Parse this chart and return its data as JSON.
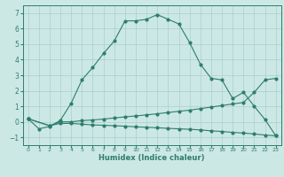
{
  "xlabel": "Humidex (Indice chaleur)",
  "bg_color": "#cce8e5",
  "grid_color": "#aacfcc",
  "line_color": "#2e7d6e",
  "xlim": [
    -0.5,
    23.5
  ],
  "ylim": [
    -1.5,
    7.5
  ],
  "xticks": [
    0,
    1,
    2,
    3,
    4,
    5,
    6,
    7,
    8,
    9,
    10,
    11,
    12,
    13,
    14,
    15,
    16,
    17,
    18,
    19,
    20,
    21,
    22,
    23
  ],
  "yticks": [
    -1,
    0,
    1,
    2,
    3,
    4,
    5,
    6,
    7
  ],
  "line1_x": [
    0,
    1,
    2,
    3,
    4,
    5,
    6,
    7,
    8,
    9,
    10,
    11,
    12,
    13,
    14,
    15,
    16,
    17,
    18,
    19,
    20,
    21,
    22,
    23
  ],
  "line1_y": [
    0.2,
    -0.45,
    -0.3,
    0.1,
    1.2,
    2.7,
    3.5,
    4.4,
    5.2,
    6.5,
    6.5,
    6.6,
    6.9,
    6.6,
    6.3,
    5.1,
    3.7,
    2.8,
    2.7,
    1.5,
    1.9,
    1.0,
    0.15,
    -0.9
  ],
  "line2_x": [
    0,
    2,
    3,
    4,
    5,
    6,
    7,
    8,
    9,
    10,
    11,
    12,
    13,
    14,
    15,
    16,
    17,
    18,
    19,
    20,
    21,
    22,
    23
  ],
  "line2_y": [
    0.2,
    -0.25,
    0.0,
    0.0,
    0.08,
    0.12,
    0.18,
    0.25,
    0.32,
    0.38,
    0.45,
    0.52,
    0.6,
    0.68,
    0.75,
    0.85,
    0.95,
    1.05,
    1.15,
    1.25,
    1.9,
    2.7,
    2.8
  ],
  "line3_x": [
    0,
    2,
    3,
    4,
    5,
    6,
    7,
    8,
    9,
    10,
    11,
    12,
    13,
    14,
    15,
    16,
    17,
    18,
    19,
    20,
    21,
    22,
    23
  ],
  "line3_y": [
    0.2,
    -0.25,
    -0.1,
    -0.1,
    -0.15,
    -0.2,
    -0.22,
    -0.25,
    -0.28,
    -0.32,
    -0.35,
    -0.38,
    -0.42,
    -0.45,
    -0.48,
    -0.52,
    -0.58,
    -0.62,
    -0.68,
    -0.72,
    -0.78,
    -0.85,
    -0.9
  ]
}
